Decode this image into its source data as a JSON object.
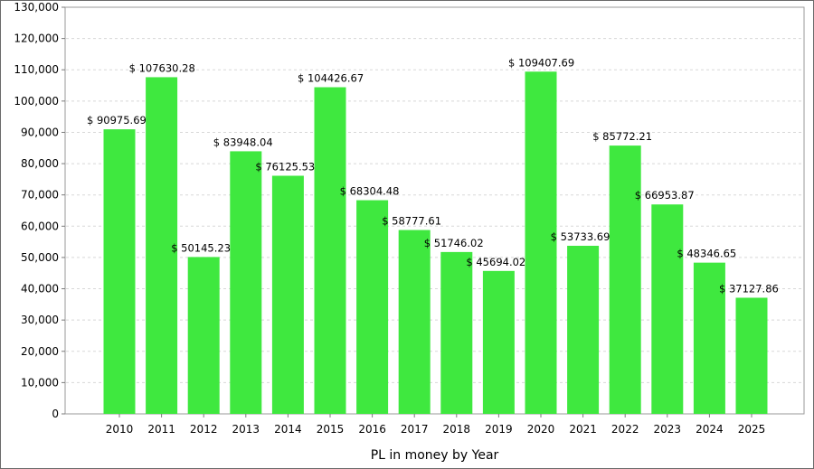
{
  "chart_data": {
    "type": "bar",
    "title": "",
    "xlabel": "PL in money by Year",
    "ylabel": "",
    "categories": [
      "2010",
      "2011",
      "2012",
      "2013",
      "2014",
      "2015",
      "2016",
      "2017",
      "2018",
      "2019",
      "2020",
      "2021",
      "2022",
      "2023",
      "2024",
      "2025"
    ],
    "values": [
      90975.69,
      107630.28,
      50145.23,
      83948.04,
      76125.53,
      104426.67,
      68304.48,
      58777.61,
      51746.02,
      45694.02,
      109407.69,
      53733.69,
      85772.21,
      66953.87,
      48346.65,
      37127.86
    ],
    "data_labels": [
      "$ 90975.69",
      "$ 107630.28",
      "$ 50145.23",
      "$ 83948.04",
      "$ 76125.53",
      "$ 104426.67",
      "$ 68304.48",
      "$ 58777.61",
      "$ 51746.02",
      "$ 45694.02",
      "$ 109407.69",
      "$ 53733.69",
      "$ 85772.21",
      "$ 66953.87",
      "$ 48346.65",
      "$ 37127.86"
    ],
    "ylim": [
      0,
      130000
    ],
    "yticks": [
      0,
      10000,
      20000,
      30000,
      40000,
      50000,
      60000,
      70000,
      80000,
      90000,
      100000,
      110000,
      120000,
      130000
    ],
    "ytick_labels": [
      "0",
      "10,000",
      "20,000",
      "30,000",
      "40,000",
      "50,000",
      "60,000",
      "70,000",
      "80,000",
      "90,000",
      "100,000",
      "110,000",
      "120,000",
      "130,000"
    ],
    "grid": true,
    "legend": "none",
    "bar_color": "#3fe83f"
  }
}
